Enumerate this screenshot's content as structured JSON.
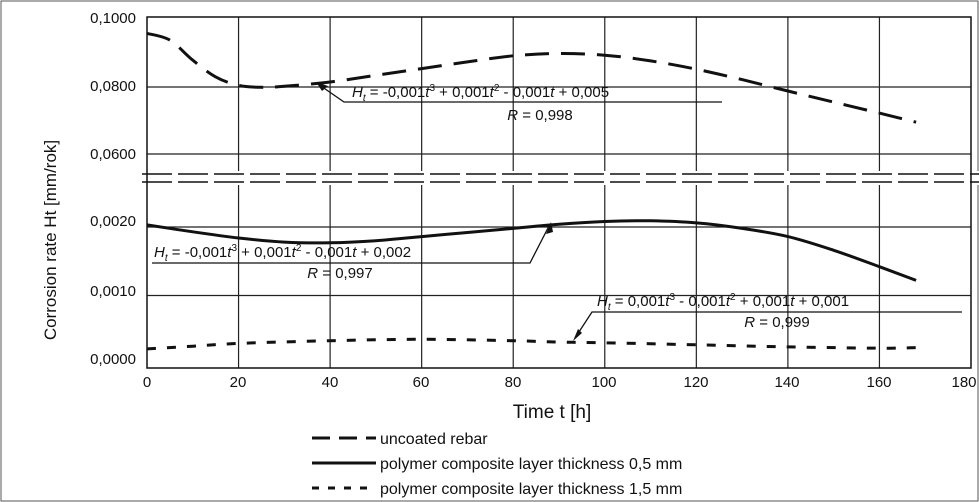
{
  "chart_data": {
    "type": "line",
    "xlabel": "Time t [h]",
    "ylabel": "Corrosion rate Ht [mm/rok]",
    "xlim": [
      0,
      180
    ],
    "x_ticks": [
      "0",
      "20",
      "40",
      "60",
      "80",
      "100",
      "120",
      "140",
      "160",
      "180"
    ],
    "y_ticks_upper": [
      "0,0600",
      "0,0800",
      "0,1000"
    ],
    "y_ticks_lower": [
      "0,0000",
      "0,0010",
      "0,0020"
    ],
    "y_axis_break": "between 0,0020 and 0,0600",
    "grid": true,
    "legend_position": "bottom-center",
    "colors": {
      "series": "#111111",
      "grid": "#222222",
      "background": "#ffffff"
    },
    "series": [
      {
        "name": "uncoated rebar",
        "line_style": "dashed-long",
        "x": [
          0,
          5,
          10,
          15,
          20,
          25,
          30,
          40,
          50,
          60,
          70,
          80,
          90,
          100,
          110,
          120,
          130,
          140,
          150,
          160,
          168
        ],
        "y": [
          0.096,
          0.094,
          0.088,
          0.083,
          0.0805,
          0.0799,
          0.0802,
          0.0815,
          0.0835,
          0.0855,
          0.0875,
          0.0893,
          0.09,
          0.0895,
          0.0878,
          0.0853,
          0.0822,
          0.0788,
          0.0755,
          0.0722,
          0.0695
        ]
      },
      {
        "name": "polymer composite layer thickness 0,5 mm",
        "line_style": "solid",
        "x": [
          0,
          10,
          20,
          30,
          40,
          50,
          60,
          70,
          80,
          90,
          100,
          110,
          120,
          130,
          140,
          150,
          160,
          168
        ],
        "y": [
          0.00203,
          0.00193,
          0.00184,
          0.00178,
          0.00177,
          0.0018,
          0.00186,
          0.00192,
          0.00198,
          0.00204,
          0.00208,
          0.00209,
          0.00206,
          0.00198,
          0.00186,
          0.00166,
          0.00142,
          0.00122
        ]
      },
      {
        "name": "polymer composite layer thickness 1,5 mm",
        "line_style": "dashed-short",
        "x": [
          0,
          10,
          20,
          40,
          60,
          80,
          90,
          100,
          120,
          140,
          160,
          168
        ],
        "y": [
          0.00022,
          0.00026,
          0.0003,
          0.00034,
          0.00036,
          0.00034,
          0.00032,
          0.00031,
          0.00028,
          0.00025,
          0.00023,
          0.00024
        ]
      }
    ],
    "annotations": [
      {
        "series": "uncoated rebar",
        "equation": "H_t = -0,001t^3 + 0,001t^2 - 0,001t + 0,005",
        "r": "R = 0,998",
        "points_to_x": 37
      },
      {
        "series": "polymer composite layer thickness 0,5 mm",
        "equation": "H_t = -0,001t^3 + 0,001t^2 - 0,001t + 0,002",
        "r": "R = 0,997",
        "points_to_x": 86
      },
      {
        "series": "polymer composite layer thickness 1,5 mm",
        "equation": "H_t = 0,001t^3 - 0,001t^2 + 0,001t + 0,001",
        "r": "R = 0,999",
        "points_to_x": 93
      }
    ]
  },
  "eq": {
    "uncoated": {
      "h": "H",
      "t": "t",
      "p1": " = -0,001",
      "pt1": "t",
      "s1": "3",
      "p2": " + 0,001",
      "pt2": "t",
      "s2": "2",
      "p3": " - 0,001",
      "pt3": "t",
      "p4": " + 0,005",
      "rR": "R",
      "rv": " = 0,998"
    },
    "thin": {
      "h": "H",
      "t": "t",
      "p1": " = -0,001",
      "pt1": "t",
      "s1": "3",
      "p2": " + 0,001",
      "pt2": "t",
      "s2": "2",
      "p3": " - 0,001",
      "pt3": "t",
      "p4": " + 0,002",
      "rR": "R",
      "rv": " = 0,997"
    },
    "thick": {
      "h": "H",
      "t": "t",
      "p1": " = 0,001",
      "pt1": "t",
      "s1": "3",
      "p2": " - 0,001",
      "pt2": "t",
      "s2": "2",
      "p3": " + 0,001",
      "pt3": "t",
      "p4": " + 0,001",
      "rR": "R",
      "rv": " = 0,999"
    }
  }
}
